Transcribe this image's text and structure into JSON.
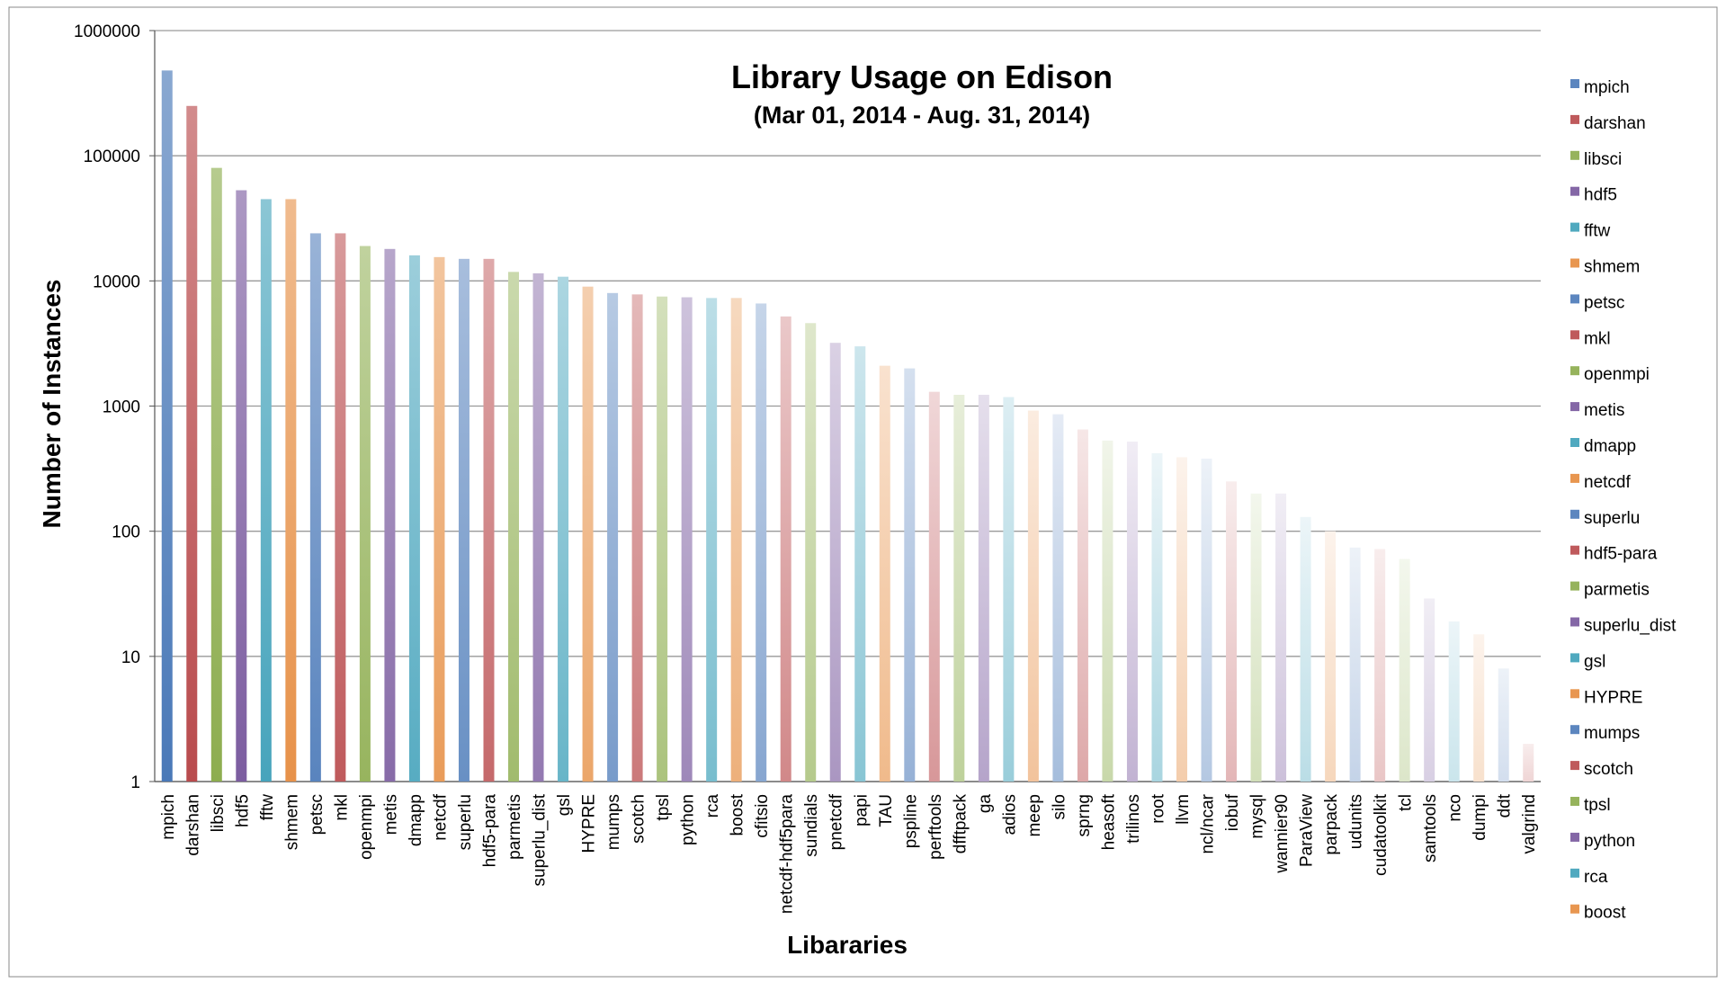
{
  "chart_data": {
    "type": "bar",
    "title": "Library Usage on Edison",
    "subtitle": "(Mar 01, 2014 - Aug. 31, 2014)",
    "xlabel": "Libararies",
    "ylabel": "Number of Instances",
    "yscale": "log",
    "ylim": [
      1,
      1000000
    ],
    "yticks": [
      "1",
      "10",
      "100",
      "1000",
      "10000",
      "100000",
      "1000000"
    ],
    "grid": true,
    "legend_position": "right",
    "categories": [
      "mpich",
      "darshan",
      "libsci",
      "hdf5",
      "fftw",
      "shmem",
      "petsc",
      "mkl",
      "openmpi",
      "metis",
      "dmapp",
      "netcdf",
      "superlu",
      "hdf5-para",
      "parmetis",
      "superlu_dist",
      "gsl",
      "HYPRE",
      "mumps",
      "scotch",
      "tpsl",
      "python",
      "rca",
      "boost",
      "cfitsio",
      "netcdf-hdf5para",
      "sundials",
      "pnetcdf",
      "papi",
      "TAU",
      "pspline",
      "perftools",
      "dfftpack",
      "ga",
      "adios",
      "meep",
      "silo",
      "sprng",
      "heasoft",
      "trilinos",
      "root",
      "llvm",
      "ncl/ncar",
      "iobuf",
      "mysql",
      "wannier90",
      "ParaView",
      "parpack",
      "udunits",
      "cudatoolkit",
      "tcl",
      "samtools",
      "nco",
      "dumpi",
      "ddt",
      "valgrind"
    ],
    "values": [
      480000,
      250000,
      80000,
      53000,
      45000,
      45000,
      24000,
      24000,
      19000,
      18000,
      16000,
      15500,
      15000,
      15000,
      11800,
      11500,
      10800,
      9000,
      8000,
      7800,
      7500,
      7400,
      7300,
      7300,
      6600,
      5200,
      4600,
      3200,
      3000,
      2100,
      2000,
      1300,
      1230,
      1230,
      1180,
      920,
      860,
      650,
      530,
      520,
      420,
      390,
      380,
      250,
      200,
      200,
      130,
      100,
      74,
      72,
      60,
      29,
      19,
      15,
      8,
      2
    ],
    "legend": [
      "mpich",
      "darshan",
      "libsci",
      "hdf5",
      "fftw",
      "shmem",
      "petsc",
      "mkl",
      "openmpi",
      "metis",
      "dmapp",
      "netcdf",
      "superlu",
      "hdf5-para",
      "parmetis",
      "superlu_dist",
      "gsl",
      "HYPRE",
      "mumps",
      "scotch",
      "tpsl",
      "python",
      "rca",
      "boost"
    ],
    "palette": [
      "#4a79b8",
      "#b8484a",
      "#8aab4a",
      "#76569c",
      "#3c9fb8",
      "#e58a3c"
    ]
  }
}
